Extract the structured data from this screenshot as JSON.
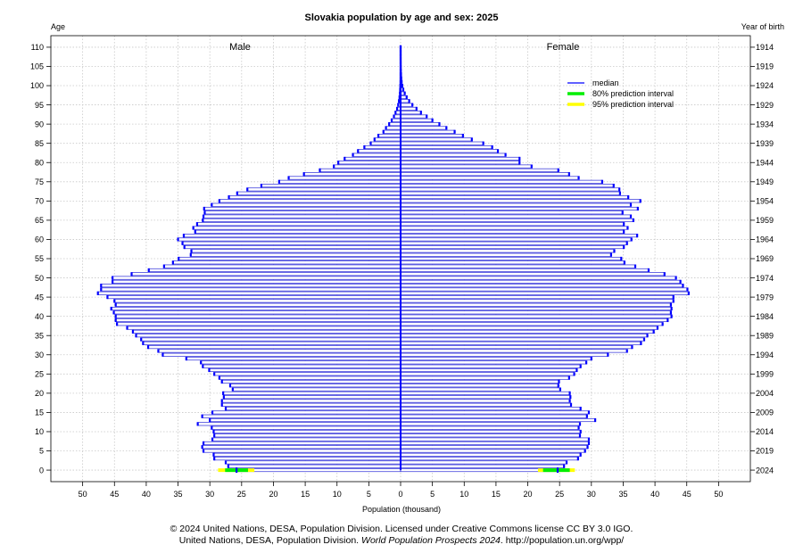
{
  "chart_data": {
    "type": "bar",
    "title": "Slovakia population by age and sex: 2025",
    "xlabel": "Population (thousand)",
    "left_axis_label": "Age",
    "right_axis_label": "Year of birth",
    "male_label": "Male",
    "female_label": "Female",
    "xlim": [
      -55,
      55
    ],
    "ylim": [
      -3,
      113
    ],
    "x_ticks": [
      -50,
      -45,
      -40,
      -35,
      -30,
      -25,
      -20,
      -15,
      -10,
      -5,
      0,
      5,
      10,
      15,
      20,
      25,
      30,
      35,
      40,
      45,
      50
    ],
    "x_tick_labels": [
      "50",
      "45",
      "40",
      "35",
      "30",
      "25",
      "20",
      "15",
      "10",
      "5",
      "0",
      "5",
      "10",
      "15",
      "20",
      "25",
      "30",
      "35",
      "40",
      "45",
      "50"
    ],
    "age_ticks": [
      0,
      5,
      10,
      15,
      20,
      25,
      30,
      35,
      40,
      45,
      50,
      55,
      60,
      65,
      70,
      75,
      80,
      85,
      90,
      95,
      100,
      105,
      110
    ],
    "year_tick_labels": [
      "2024",
      "2019",
      "2014",
      "2009",
      "2004",
      "1999",
      "1994",
      "1989",
      "1984",
      "1979",
      "1974",
      "1969",
      "1964",
      "1959",
      "1954",
      "1949",
      "1944",
      "1939",
      "1934",
      "1929",
      "1924",
      "1919",
      "1914"
    ],
    "grid": true,
    "legend_position": "top-right",
    "legend": [
      {
        "label": "median",
        "color": "#0000ff"
      },
      {
        "label": "80% prediction interval",
        "color": "#00ee00"
      },
      {
        "label": "95% prediction interval",
        "color": "#ffff00"
      }
    ],
    "ages": [
      0,
      1,
      2,
      3,
      4,
      5,
      6,
      7,
      8,
      9,
      10,
      11,
      12,
      13,
      14,
      15,
      16,
      17,
      18,
      19,
      20,
      21,
      22,
      23,
      24,
      25,
      26,
      27,
      28,
      29,
      30,
      31,
      32,
      33,
      34,
      35,
      36,
      37,
      38,
      39,
      40,
      41,
      42,
      43,
      44,
      45,
      46,
      47,
      48,
      49,
      50,
      51,
      52,
      53,
      54,
      55,
      56,
      57,
      58,
      59,
      60,
      61,
      62,
      63,
      64,
      65,
      66,
      67,
      68,
      69,
      70,
      71,
      72,
      73,
      74,
      75,
      76,
      77,
      78,
      79,
      80,
      81,
      82,
      83,
      84,
      85,
      86,
      87,
      88,
      89,
      90,
      91,
      92,
      93,
      94,
      95,
      96,
      97,
      98,
      99,
      100,
      101,
      102,
      103,
      104,
      105,
      106,
      107,
      108,
      109,
      110
    ],
    "series": [
      {
        "name": "Male",
        "values": [
          25.8,
          27.1,
          27.5,
          29.3,
          29.4,
          31.0,
          31.2,
          31.0,
          29.6,
          29.3,
          29.4,
          29.7,
          31.9,
          30.0,
          31.2,
          29.6,
          27.5,
          28.1,
          28.1,
          27.8,
          27.9,
          26.4,
          26.8,
          28.1,
          28.5,
          29.3,
          30.1,
          31.1,
          31.4,
          33.7,
          37.4,
          38.1,
          39.7,
          40.5,
          40.8,
          41.6,
          42.1,
          43.0,
          44.6,
          44.8,
          44.8,
          45.1,
          45.5,
          44.8,
          45.0,
          46.1,
          47.6,
          47.1,
          47.1,
          45.3,
          45.3,
          42.3,
          39.6,
          37.2,
          35.8,
          34.9,
          33.0,
          32.9,
          34.0,
          34.3,
          35.0,
          34.1,
          32.3,
          32.6,
          32.0,
          31.1,
          31.0,
          30.8,
          30.9,
          29.7,
          28.5,
          27.0,
          25.7,
          24.1,
          21.9,
          19.1,
          17.6,
          15.2,
          12.7,
          10.5,
          9.8,
          8.8,
          7.5,
          6.7,
          5.7,
          4.7,
          4.1,
          3.5,
          2.7,
          2.3,
          1.8,
          1.4,
          1.05,
          0.8,
          0.55,
          0.38,
          0.26,
          0.17,
          0.11,
          0.07,
          0.045,
          0.02,
          0.01,
          0.01,
          0.005,
          0.003,
          0.002,
          0.001,
          0.001,
          0.001,
          0.001
        ],
        "lo80": [
          24.0
        ],
        "hi80": [
          27.6
        ],
        "lo95": [
          23.0
        ],
        "hi95": [
          28.7
        ]
      },
      {
        "name": "Female",
        "values": [
          24.7,
          25.7,
          26.1,
          27.9,
          28.3,
          29.0,
          29.4,
          29.6,
          29.6,
          28.2,
          28.3,
          28.0,
          28.2,
          30.6,
          29.3,
          29.6,
          28.3,
          26.8,
          26.6,
          26.7,
          26.6,
          25.1,
          24.8,
          24.9,
          26.5,
          27.3,
          27.7,
          28.3,
          29.2,
          30.0,
          32.6,
          35.6,
          36.4,
          37.8,
          38.3,
          38.8,
          39.8,
          40.4,
          41.2,
          42.0,
          42.6,
          42.5,
          42.6,
          42.5,
          42.9,
          42.9,
          45.3,
          45.1,
          44.4,
          44.0,
          43.3,
          41.5,
          39.0,
          36.9,
          35.2,
          34.7,
          33.1,
          33.6,
          35.1,
          35.6,
          36.3,
          37.2,
          35.1,
          35.7,
          35.1,
          36.6,
          36.2,
          34.9,
          37.3,
          36.2,
          37.7,
          35.8,
          34.5,
          34.4,
          33.5,
          31.7,
          28.0,
          26.5,
          24.8,
          20.6,
          18.7,
          18.7,
          16.5,
          15.3,
          14.4,
          13.0,
          11.2,
          9.8,
          8.5,
          7.2,
          6.1,
          5.0,
          4.1,
          3.2,
          2.5,
          1.85,
          1.35,
          0.95,
          0.65,
          0.42,
          0.27,
          0.16,
          0.1,
          0.06,
          0.035,
          0.02,
          0.01,
          0.005,
          0.003,
          0.002,
          0.001
        ],
        "lo80": [
          22.4
        ],
        "hi80": [
          26.6
        ],
        "lo95": [
          21.6
        ],
        "hi95": [
          27.4
        ]
      }
    ]
  },
  "footer": {
    "line1": "© 2024 United Nations, DESA, Population Division. Licensed under Creative Commons license CC BY 3.0 IGO.",
    "line2_prefix": "United Nations, DESA, Population Division. ",
    "line2_italic": "World Population Prospects 2024",
    "line2_suffix": ". http://population.un.org/wpp/"
  }
}
